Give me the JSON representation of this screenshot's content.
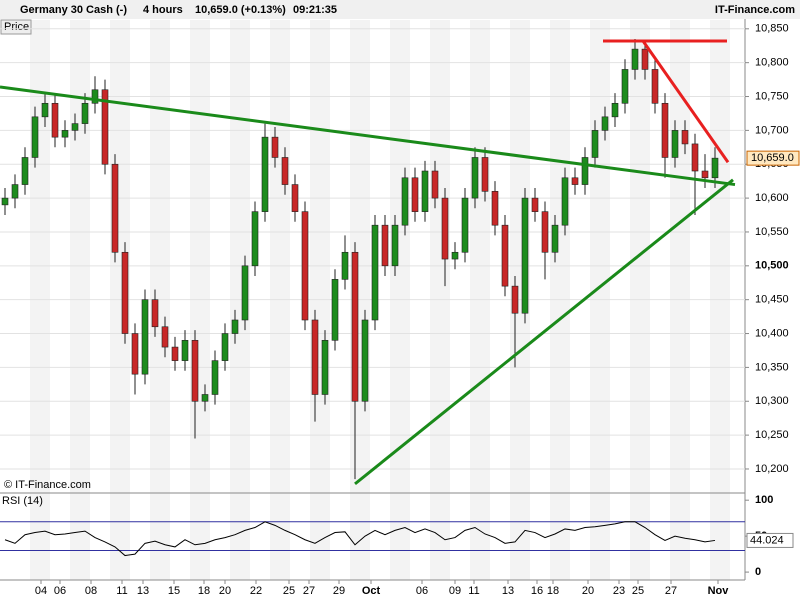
{
  "chart_data": [
    {
      "type": "candlestick",
      "title": "Germany 30 Cash (-)",
      "interval": "4 hours",
      "quote": "10,659.0 (+0.13%)",
      "time": "09:21:35",
      "brand": "IT-Finance.com",
      "panel_label": "Price",
      "copyright": "© IT-Finance.com",
      "last": {
        "value": 10659,
        "label": "10,659.0"
      },
      "up_color": "#1e8c1e",
      "down_color": "#c82828",
      "xlim": [
        0,
        74.5
      ],
      "xticks": [
        {
          "value": 4.1,
          "label": "04"
        },
        {
          "value": 6,
          "label": "06"
        },
        {
          "value": 9.1,
          "label": "08"
        },
        {
          "value": 12.2,
          "label": "11"
        },
        {
          "value": 14.3,
          "label": "13"
        },
        {
          "value": 17.4,
          "label": "15"
        },
        {
          "value": 20.4,
          "label": "18"
        },
        {
          "value": 22.5,
          "label": "20"
        },
        {
          "value": 25.6,
          "label": "22"
        },
        {
          "value": 28.9,
          "label": "25"
        },
        {
          "value": 30.9,
          "label": "27"
        },
        {
          "value": 33.9,
          "label": "29"
        },
        {
          "value": 37.1,
          "label": "Oct"
        },
        {
          "value": 42.2,
          "label": "06"
        },
        {
          "value": 45.5,
          "label": "09"
        },
        {
          "value": 47.4,
          "label": "11"
        },
        {
          "value": 50.8,
          "label": "13"
        },
        {
          "value": 53.7,
          "label": "16"
        },
        {
          "value": 55.3,
          "label": "18"
        },
        {
          "value": 58.8,
          "label": "20"
        },
        {
          "value": 61.9,
          "label": "23"
        },
        {
          "value": 63.8,
          "label": "25"
        },
        {
          "value": 67.1,
          "label": "27"
        },
        {
          "value": 71.8,
          "label": "Nov"
        }
      ],
      "ylim": [
        10166,
        10863
      ],
      "yticks": [
        {
          "value": 10200,
          "label": "10,200"
        },
        {
          "value": 10250,
          "label": "10,250"
        },
        {
          "value": 10300,
          "label": "10,300"
        },
        {
          "value": 10350,
          "label": "10,350"
        },
        {
          "value": 10400,
          "label": "10,400"
        },
        {
          "value": 10450,
          "label": "10,450"
        },
        {
          "value": 10500,
          "label": "10,500"
        },
        {
          "value": 10550,
          "label": "10,550"
        },
        {
          "value": 10600,
          "label": "10,600"
        },
        {
          "value": 10650,
          "label": "10,650"
        },
        {
          "value": 10700,
          "label": "10,700"
        },
        {
          "value": 10750,
          "label": "10,750"
        },
        {
          "value": 10800,
          "label": "10,800"
        },
        {
          "value": 10850,
          "label": "10,850"
        }
      ],
      "grid": true,
      "x": [
        0.5,
        1.5,
        2.5,
        3.5,
        4.5,
        5.5,
        6.5,
        7.5,
        8.5,
        9.5,
        10.5,
        11.5,
        12.5,
        13.5,
        14.5,
        15.5,
        16.5,
        17.5,
        18.5,
        19.5,
        20.5,
        21.5,
        22.5,
        23.5,
        24.5,
        25.5,
        26.5,
        27.5,
        28.5,
        29.5,
        30.5,
        31.5,
        32.5,
        33.5,
        34.5,
        35.5,
        36.5,
        37.5,
        38.5,
        39.5,
        40.5,
        41.5,
        42.5,
        43.5,
        44.5,
        45.5,
        46.5,
        47.5,
        48.5,
        49.5,
        50.5,
        51.5,
        52.5,
        53.5,
        54.5,
        55.5,
        56.5,
        57.5,
        58.5,
        59.5,
        60.5,
        61.5,
        62.5,
        63.5,
        64.5,
        65.5,
        66.5,
        67.5,
        68.5,
        69.5,
        70.5,
        71.5
      ],
      "open": [
        10590,
        10600,
        10620,
        10660,
        10720,
        10740,
        10690,
        10700,
        10710,
        10740,
        10760,
        10650,
        10520,
        10400,
        10340,
        10450,
        10410,
        10380,
        10360,
        10390,
        10300,
        10310,
        10360,
        10400,
        10420,
        10500,
        10580,
        10690,
        10660,
        10620,
        10580,
        10420,
        10310,
        10390,
        10480,
        10520,
        10300,
        10420,
        10560,
        10500,
        10560,
        10630,
        10580,
        10640,
        10600,
        10510,
        10520,
        10600,
        10660,
        10610,
        10560,
        10470,
        10430,
        10600,
        10580,
        10520,
        10560,
        10630,
        10620,
        10660,
        10700,
        10720,
        10740,
        10790,
        10820,
        10790,
        10740,
        10660,
        10700,
        10680,
        10640,
        10630
      ],
      "high": [
        10615,
        10635,
        10675,
        10735,
        10755,
        10755,
        10715,
        10725,
        10755,
        10780,
        10775,
        10665,
        10535,
        10415,
        10465,
        10465,
        10425,
        10395,
        10405,
        10405,
        10325,
        10375,
        10415,
        10435,
        10515,
        10595,
        10710,
        10705,
        10675,
        10635,
        10595,
        10435,
        10405,
        10495,
        10545,
        10535,
        10435,
        10575,
        10575,
        10575,
        10645,
        10645,
        10655,
        10655,
        10615,
        10535,
        10615,
        10675,
        10675,
        10625,
        10575,
        10485,
        10615,
        10615,
        10595,
        10575,
        10645,
        10645,
        10675,
        10715,
        10735,
        10755,
        10805,
        10835,
        10830,
        10805,
        10755,
        10715,
        10715,
        10695,
        10665,
        10675
      ],
      "low": [
        10575,
        10585,
        10605,
        10645,
        10705,
        10675,
        10675,
        10685,
        10695,
        10725,
        10635,
        10505,
        10385,
        10310,
        10325,
        10395,
        10365,
        10345,
        10345,
        10245,
        10285,
        10295,
        10345,
        10385,
        10405,
        10485,
        10565,
        10645,
        10605,
        10565,
        10405,
        10270,
        10295,
        10375,
        10465,
        10185,
        10285,
        10405,
        10485,
        10485,
        10545,
        10565,
        10565,
        10585,
        10470,
        10495,
        10505,
        10585,
        10595,
        10545,
        10455,
        10350,
        10415,
        10565,
        10480,
        10505,
        10545,
        10605,
        10605,
        10645,
        10685,
        10705,
        10725,
        10775,
        10775,
        10725,
        10630,
        10645,
        10665,
        10575,
        10615,
        10615
      ],
      "close": [
        10600,
        10620,
        10660,
        10720,
        10740,
        10690,
        10700,
        10710,
        10740,
        10760,
        10650,
        10520,
        10400,
        10340,
        10450,
        10410,
        10380,
        10360,
        10390,
        10300,
        10310,
        10360,
        10400,
        10420,
        10500,
        10580,
        10690,
        10660,
        10620,
        10580,
        10420,
        10310,
        10390,
        10480,
        10520,
        10300,
        10420,
        10560,
        10500,
        10560,
        10630,
        10580,
        10640,
        10600,
        10510,
        10520,
        10600,
        10660,
        10610,
        10560,
        10470,
        10430,
        10600,
        10580,
        10520,
        10560,
        10630,
        10620,
        10660,
        10700,
        10720,
        10740,
        10790,
        10820,
        10790,
        10740,
        10660,
        10700,
        10680,
        10640,
        10630,
        10659
      ],
      "trendlines": [
        {
          "color": "#1a8a1a",
          "x": [
            0,
            73.5
          ],
          "y": [
            10764,
            10620
          ]
        },
        {
          "color": "#1a8a1a",
          "x": [
            35.5,
            73.3
          ],
          "y": [
            10178,
            10627
          ]
        },
        {
          "color": "#e82020",
          "x": [
            60.3,
            72.7
          ],
          "y": [
            10832,
            10832
          ]
        },
        {
          "color": "#e82020",
          "x": [
            64.3,
            72.8
          ],
          "y": [
            10832,
            10653
          ]
        }
      ]
    },
    {
      "type": "line",
      "title": "RSI (14)",
      "color": "#000000",
      "level_color": "#3030a0",
      "ylim": [
        -11,
        110
      ],
      "yticks": [
        0,
        50,
        100
      ],
      "levels": [
        30,
        70
      ],
      "values": [
        45,
        40,
        52,
        55,
        57,
        52,
        53,
        55,
        57,
        48,
        42,
        35,
        23,
        25,
        40,
        43,
        38,
        35,
        45,
        38,
        40,
        45,
        48,
        52,
        58,
        62,
        70,
        65,
        58,
        52,
        45,
        40,
        48,
        55,
        56,
        38,
        50,
        58,
        52,
        58,
        62,
        55,
        60,
        55,
        45,
        48,
        58,
        62,
        53,
        48,
        40,
        42,
        58,
        55,
        48,
        53,
        60,
        58,
        62,
        63,
        65,
        67,
        70,
        70,
        62,
        52,
        44,
        50,
        47,
        45,
        42,
        44.024
      ]
    }
  ]
}
